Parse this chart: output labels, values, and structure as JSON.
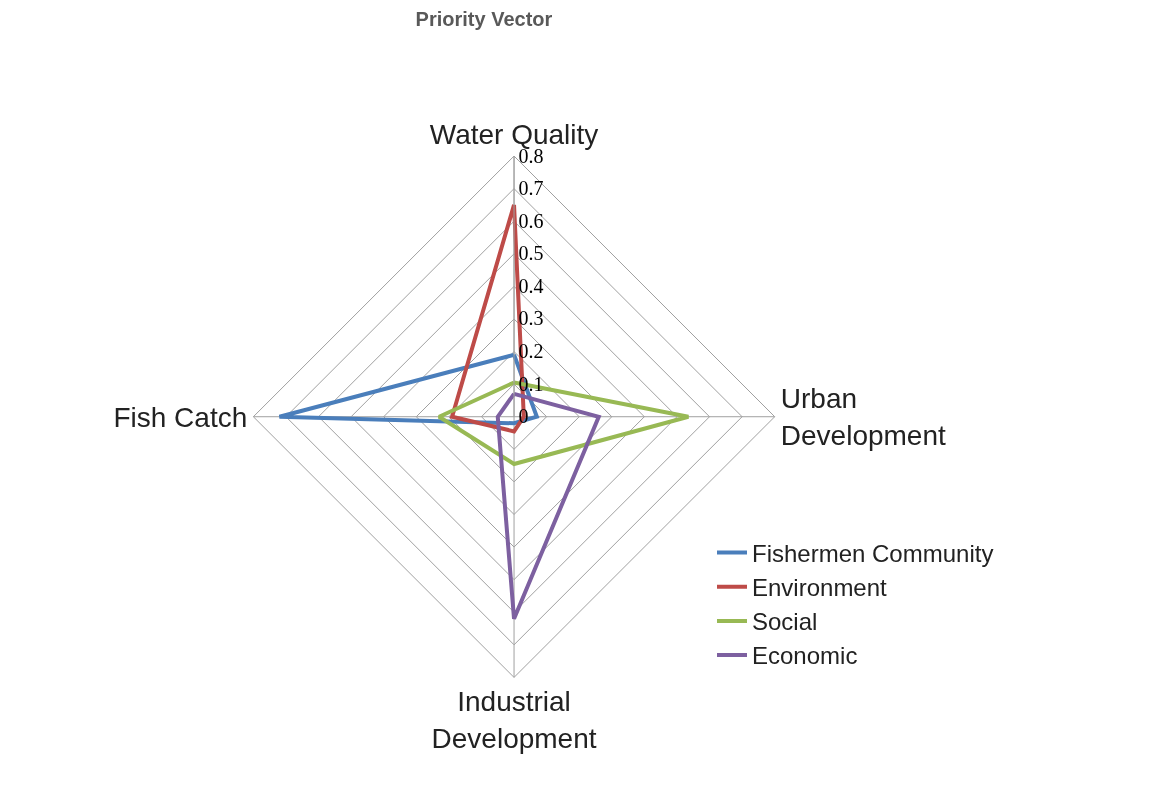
{
  "chart_data": {
    "type": "radar",
    "title": "Priority Vector",
    "categories": [
      "Water Quality",
      "Urban Development",
      "Industrial Development",
      "Fish Catch"
    ],
    "series": [
      {
        "name": "Fishermen Community",
        "color": "#4a7ebb",
        "values": [
          0.19,
          0.07,
          0.02,
          0.72
        ]
      },
      {
        "name": "Environment",
        "color": "#be4b48",
        "values": [
          0.65,
          0.03,
          0.045,
          0.19
        ]
      },
      {
        "name": "Social",
        "color": "#98b954",
        "values": [
          0.105,
          0.535,
          0.145,
          0.23
        ]
      },
      {
        "name": "Economic",
        "color": "#7d60a0",
        "values": [
          0.07,
          0.26,
          0.62,
          0.05
        ]
      }
    ],
    "ylim": [
      0,
      0.8
    ],
    "yticks": [
      0,
      0.1,
      0.2,
      0.3,
      0.4,
      0.5,
      0.6,
      0.7,
      0.8
    ],
    "grid": true,
    "legend": "bottom right",
    "marker": "none",
    "line_style": "solid"
  }
}
